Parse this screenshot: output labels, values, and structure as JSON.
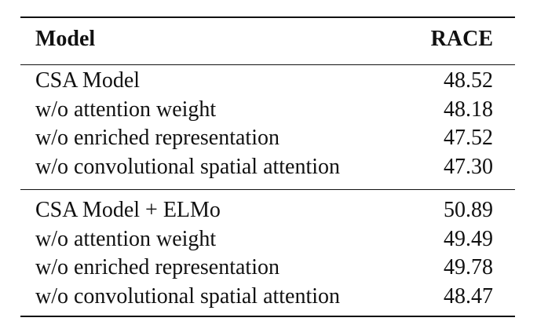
{
  "table": {
    "header": [
      "Model",
      "RACE"
    ],
    "groups": [
      {
        "rows": [
          [
            "CSA Model",
            "48.52"
          ],
          [
            "w/o attention weight",
            "48.18"
          ],
          [
            "w/o enriched representation",
            "47.52"
          ],
          [
            "w/o convolutional spatial attention",
            "47.30"
          ]
        ]
      },
      {
        "rows": [
          [
            "CSA Model + ELMo",
            "50.89"
          ],
          [
            "w/o attention weight",
            "49.49"
          ],
          [
            "w/o enriched representation",
            "49.78"
          ],
          [
            "w/o convolutional spatial attention",
            "48.47"
          ]
        ]
      }
    ]
  }
}
